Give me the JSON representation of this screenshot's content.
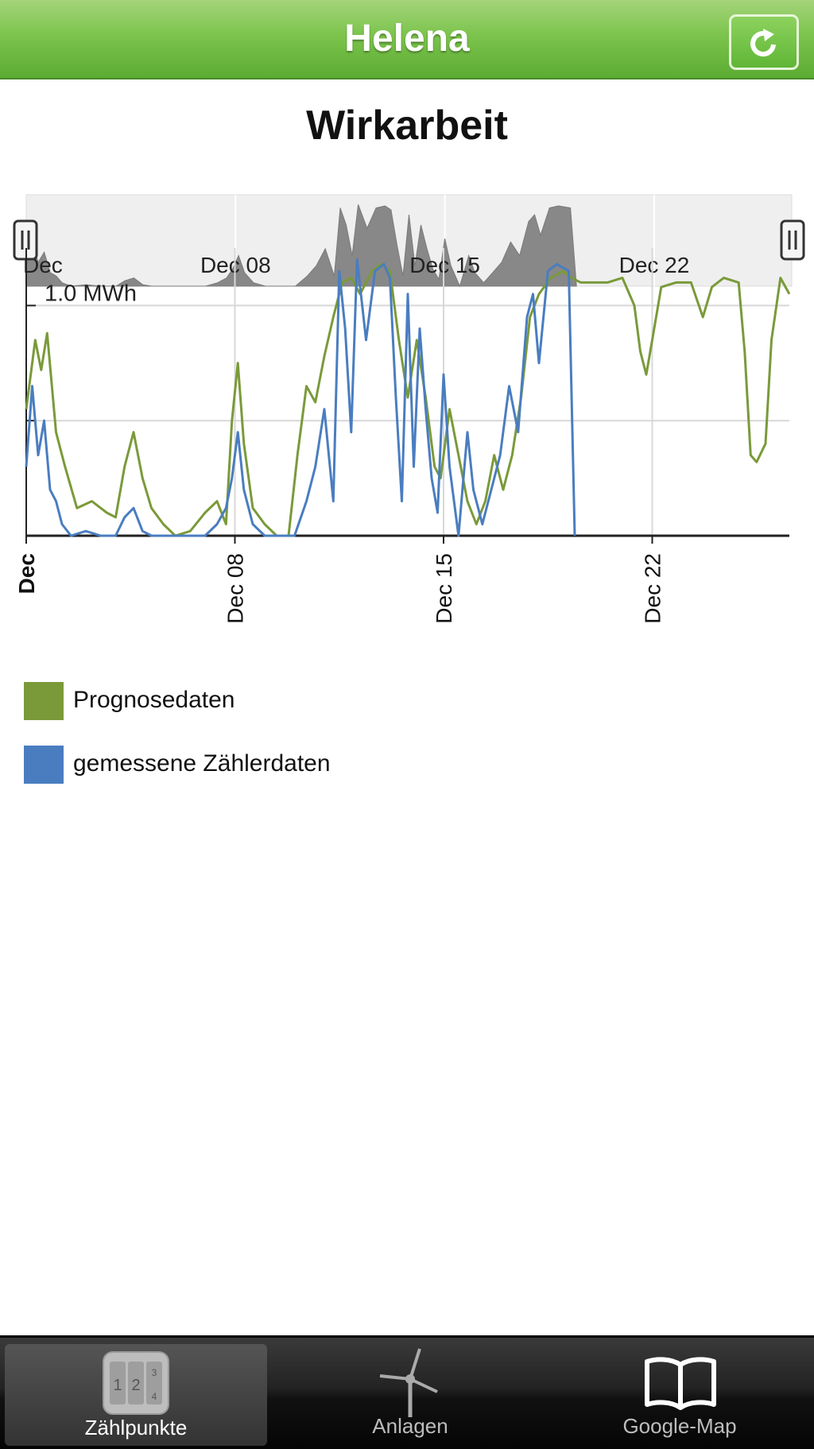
{
  "header": {
    "title": "Helena",
    "refresh_icon": "refresh-icon"
  },
  "chart_title": "Wirkarbeit",
  "chart_data": {
    "type": "line",
    "unit": "MWh",
    "y_tick_label": "1.0 MWh",
    "ylim": [
      0,
      1.25
    ],
    "x_range_days": [
      1,
      26.6
    ],
    "x_ticks": [
      {
        "day": 1,
        "label": "Dec"
      },
      {
        "day": 8,
        "label": "Dec 08"
      },
      {
        "day": 15,
        "label": "Dec 15"
      },
      {
        "day": 22,
        "label": "Dec 22"
      }
    ],
    "navigator_ticks": [
      {
        "day": 1,
        "label": "Dec"
      },
      {
        "day": 8,
        "label": "Dec 08"
      },
      {
        "day": 15,
        "label": "Dec 15"
      },
      {
        "day": 22,
        "label": "Dec 22"
      }
    ],
    "grid": true,
    "legend_position": "bottom-left",
    "series": [
      {
        "name": "Prognosedaten",
        "color": "#7a9a3a",
        "points": [
          [
            1.0,
            0.55
          ],
          [
            1.3,
            0.85
          ],
          [
            1.5,
            0.72
          ],
          [
            1.7,
            0.88
          ],
          [
            2.0,
            0.45
          ],
          [
            2.3,
            0.3
          ],
          [
            2.7,
            0.12
          ],
          [
            3.2,
            0.15
          ],
          [
            3.7,
            0.1
          ],
          [
            4.0,
            0.08
          ],
          [
            4.3,
            0.3
          ],
          [
            4.6,
            0.45
          ],
          [
            4.9,
            0.25
          ],
          [
            5.2,
            0.12
          ],
          [
            5.6,
            0.05
          ],
          [
            6.0,
            0.0
          ],
          [
            6.5,
            0.02
          ],
          [
            7.0,
            0.1
          ],
          [
            7.4,
            0.15
          ],
          [
            7.7,
            0.05
          ],
          [
            7.9,
            0.5
          ],
          [
            8.1,
            0.75
          ],
          [
            8.3,
            0.4
          ],
          [
            8.6,
            0.12
          ],
          [
            9.0,
            0.05
          ],
          [
            9.4,
            0.0
          ],
          [
            9.8,
            0.0
          ],
          [
            10.1,
            0.35
          ],
          [
            10.4,
            0.65
          ],
          [
            10.7,
            0.58
          ],
          [
            11.0,
            0.78
          ],
          [
            11.3,
            0.95
          ],
          [
            11.6,
            1.1
          ],
          [
            11.9,
            1.12
          ],
          [
            12.2,
            1.05
          ],
          [
            12.6,
            1.15
          ],
          [
            12.9,
            1.18
          ],
          [
            13.2,
            1.15
          ],
          [
            13.5,
            0.85
          ],
          [
            13.8,
            0.6
          ],
          [
            14.1,
            0.85
          ],
          [
            14.4,
            0.6
          ],
          [
            14.7,
            0.3
          ],
          [
            14.9,
            0.25
          ],
          [
            15.2,
            0.55
          ],
          [
            15.5,
            0.35
          ],
          [
            15.8,
            0.15
          ],
          [
            16.1,
            0.05
          ],
          [
            16.4,
            0.15
          ],
          [
            16.7,
            0.35
          ],
          [
            17.0,
            0.2
          ],
          [
            17.3,
            0.35
          ],
          [
            17.6,
            0.6
          ],
          [
            17.9,
            0.95
          ],
          [
            18.2,
            1.05
          ],
          [
            18.6,
            1.12
          ],
          [
            19.0,
            1.15
          ],
          [
            19.3,
            1.12
          ],
          [
            19.6,
            1.1
          ],
          [
            20.0,
            1.1
          ],
          [
            20.5,
            1.1
          ],
          [
            21.0,
            1.12
          ],
          [
            21.4,
            1.0
          ],
          [
            21.6,
            0.8
          ],
          [
            21.8,
            0.7
          ],
          [
            22.0,
            0.85
          ],
          [
            22.3,
            1.08
          ],
          [
            22.8,
            1.1
          ],
          [
            23.3,
            1.1
          ],
          [
            23.7,
            0.95
          ],
          [
            24.0,
            1.08
          ],
          [
            24.4,
            1.12
          ],
          [
            24.9,
            1.1
          ],
          [
            25.1,
            0.8
          ],
          [
            25.3,
            0.35
          ],
          [
            25.5,
            0.32
          ],
          [
            25.8,
            0.4
          ],
          [
            26.0,
            0.85
          ],
          [
            26.3,
            1.12
          ],
          [
            26.6,
            1.05
          ]
        ]
      },
      {
        "name": "gemessene Zählerdaten",
        "color": "#4a7dc0",
        "points": [
          [
            1.0,
            0.3
          ],
          [
            1.2,
            0.65
          ],
          [
            1.4,
            0.35
          ],
          [
            1.6,
            0.5
          ],
          [
            1.8,
            0.2
          ],
          [
            2.0,
            0.15
          ],
          [
            2.2,
            0.05
          ],
          [
            2.5,
            0.0
          ],
          [
            3.0,
            0.02
          ],
          [
            3.5,
            0.0
          ],
          [
            4.0,
            0.0
          ],
          [
            4.3,
            0.08
          ],
          [
            4.6,
            0.12
          ],
          [
            4.9,
            0.02
          ],
          [
            5.2,
            0.0
          ],
          [
            6.0,
            0.0
          ],
          [
            7.0,
            0.0
          ],
          [
            7.4,
            0.05
          ],
          [
            7.7,
            0.12
          ],
          [
            7.9,
            0.25
          ],
          [
            8.1,
            0.45
          ],
          [
            8.3,
            0.2
          ],
          [
            8.6,
            0.05
          ],
          [
            9.0,
            0.0
          ],
          [
            10.0,
            0.0
          ],
          [
            10.4,
            0.15
          ],
          [
            10.7,
            0.3
          ],
          [
            11.0,
            0.55
          ],
          [
            11.3,
            0.15
          ],
          [
            11.5,
            1.15
          ],
          [
            11.7,
            0.9
          ],
          [
            11.9,
            0.45
          ],
          [
            12.1,
            1.2
          ],
          [
            12.4,
            0.85
          ],
          [
            12.7,
            1.15
          ],
          [
            13.0,
            1.18
          ],
          [
            13.2,
            1.12
          ],
          [
            13.4,
            0.6
          ],
          [
            13.6,
            0.15
          ],
          [
            13.8,
            1.05
          ],
          [
            14.0,
            0.3
          ],
          [
            14.2,
            0.9
          ],
          [
            14.4,
            0.55
          ],
          [
            14.6,
            0.25
          ],
          [
            14.8,
            0.1
          ],
          [
            15.0,
            0.7
          ],
          [
            15.2,
            0.3
          ],
          [
            15.5,
            0.0
          ],
          [
            15.8,
            0.45
          ],
          [
            16.0,
            0.2
          ],
          [
            16.3,
            0.05
          ],
          [
            16.6,
            0.2
          ],
          [
            16.9,
            0.35
          ],
          [
            17.2,
            0.65
          ],
          [
            17.5,
            0.45
          ],
          [
            17.8,
            0.95
          ],
          [
            18.0,
            1.05
          ],
          [
            18.2,
            0.75
          ],
          [
            18.5,
            1.15
          ],
          [
            18.8,
            1.18
          ],
          [
            19.2,
            1.15
          ],
          [
            19.4,
            0.0
          ]
        ]
      }
    ]
  },
  "legend": [
    {
      "label": "Prognosedaten",
      "color": "#7a9a3a"
    },
    {
      "label": "gemessene Zählerdaten",
      "color": "#4a7dc0"
    }
  ],
  "tabs": [
    {
      "label": "Zählpunkte",
      "icon": "counter-icon",
      "active": true
    },
    {
      "label": "Anlagen",
      "icon": "wind-turbine-icon",
      "active": false
    },
    {
      "label": "Google-Map",
      "icon": "open-book-icon",
      "active": false
    }
  ]
}
